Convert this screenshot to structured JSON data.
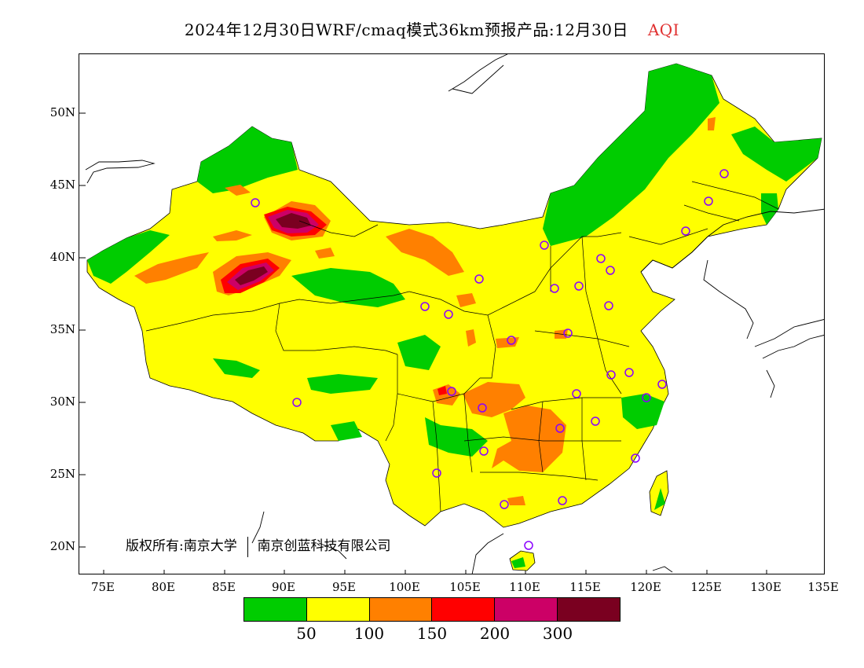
{
  "title": {
    "main": "2024年12月30日WRF/cmaq模式36km预报产品:12月30日",
    "variable": "AQI"
  },
  "axes": {
    "y_ticks": [
      "50N",
      "45N",
      "40N",
      "35N",
      "30N",
      "25N",
      "20N"
    ],
    "x_ticks": [
      "75E",
      "80E",
      "85E",
      "90E",
      "95E",
      "100E",
      "105E",
      "110E",
      "115E",
      "120E",
      "125E",
      "130E",
      "135E"
    ]
  },
  "credit": {
    "left": "版权所有:南京大学",
    "right": "南京创蓝科技有限公司"
  },
  "legend": {
    "colors": [
      "#00cc00",
      "#ffff00",
      "#ff8000",
      "#ff0000",
      "#cc0066",
      "#7a0020"
    ],
    "labels": [
      "50",
      "100",
      "150",
      "200",
      "300"
    ],
    "color_names": [
      "green",
      "yellow",
      "orange",
      "red",
      "purple",
      "maroon"
    ]
  }
}
